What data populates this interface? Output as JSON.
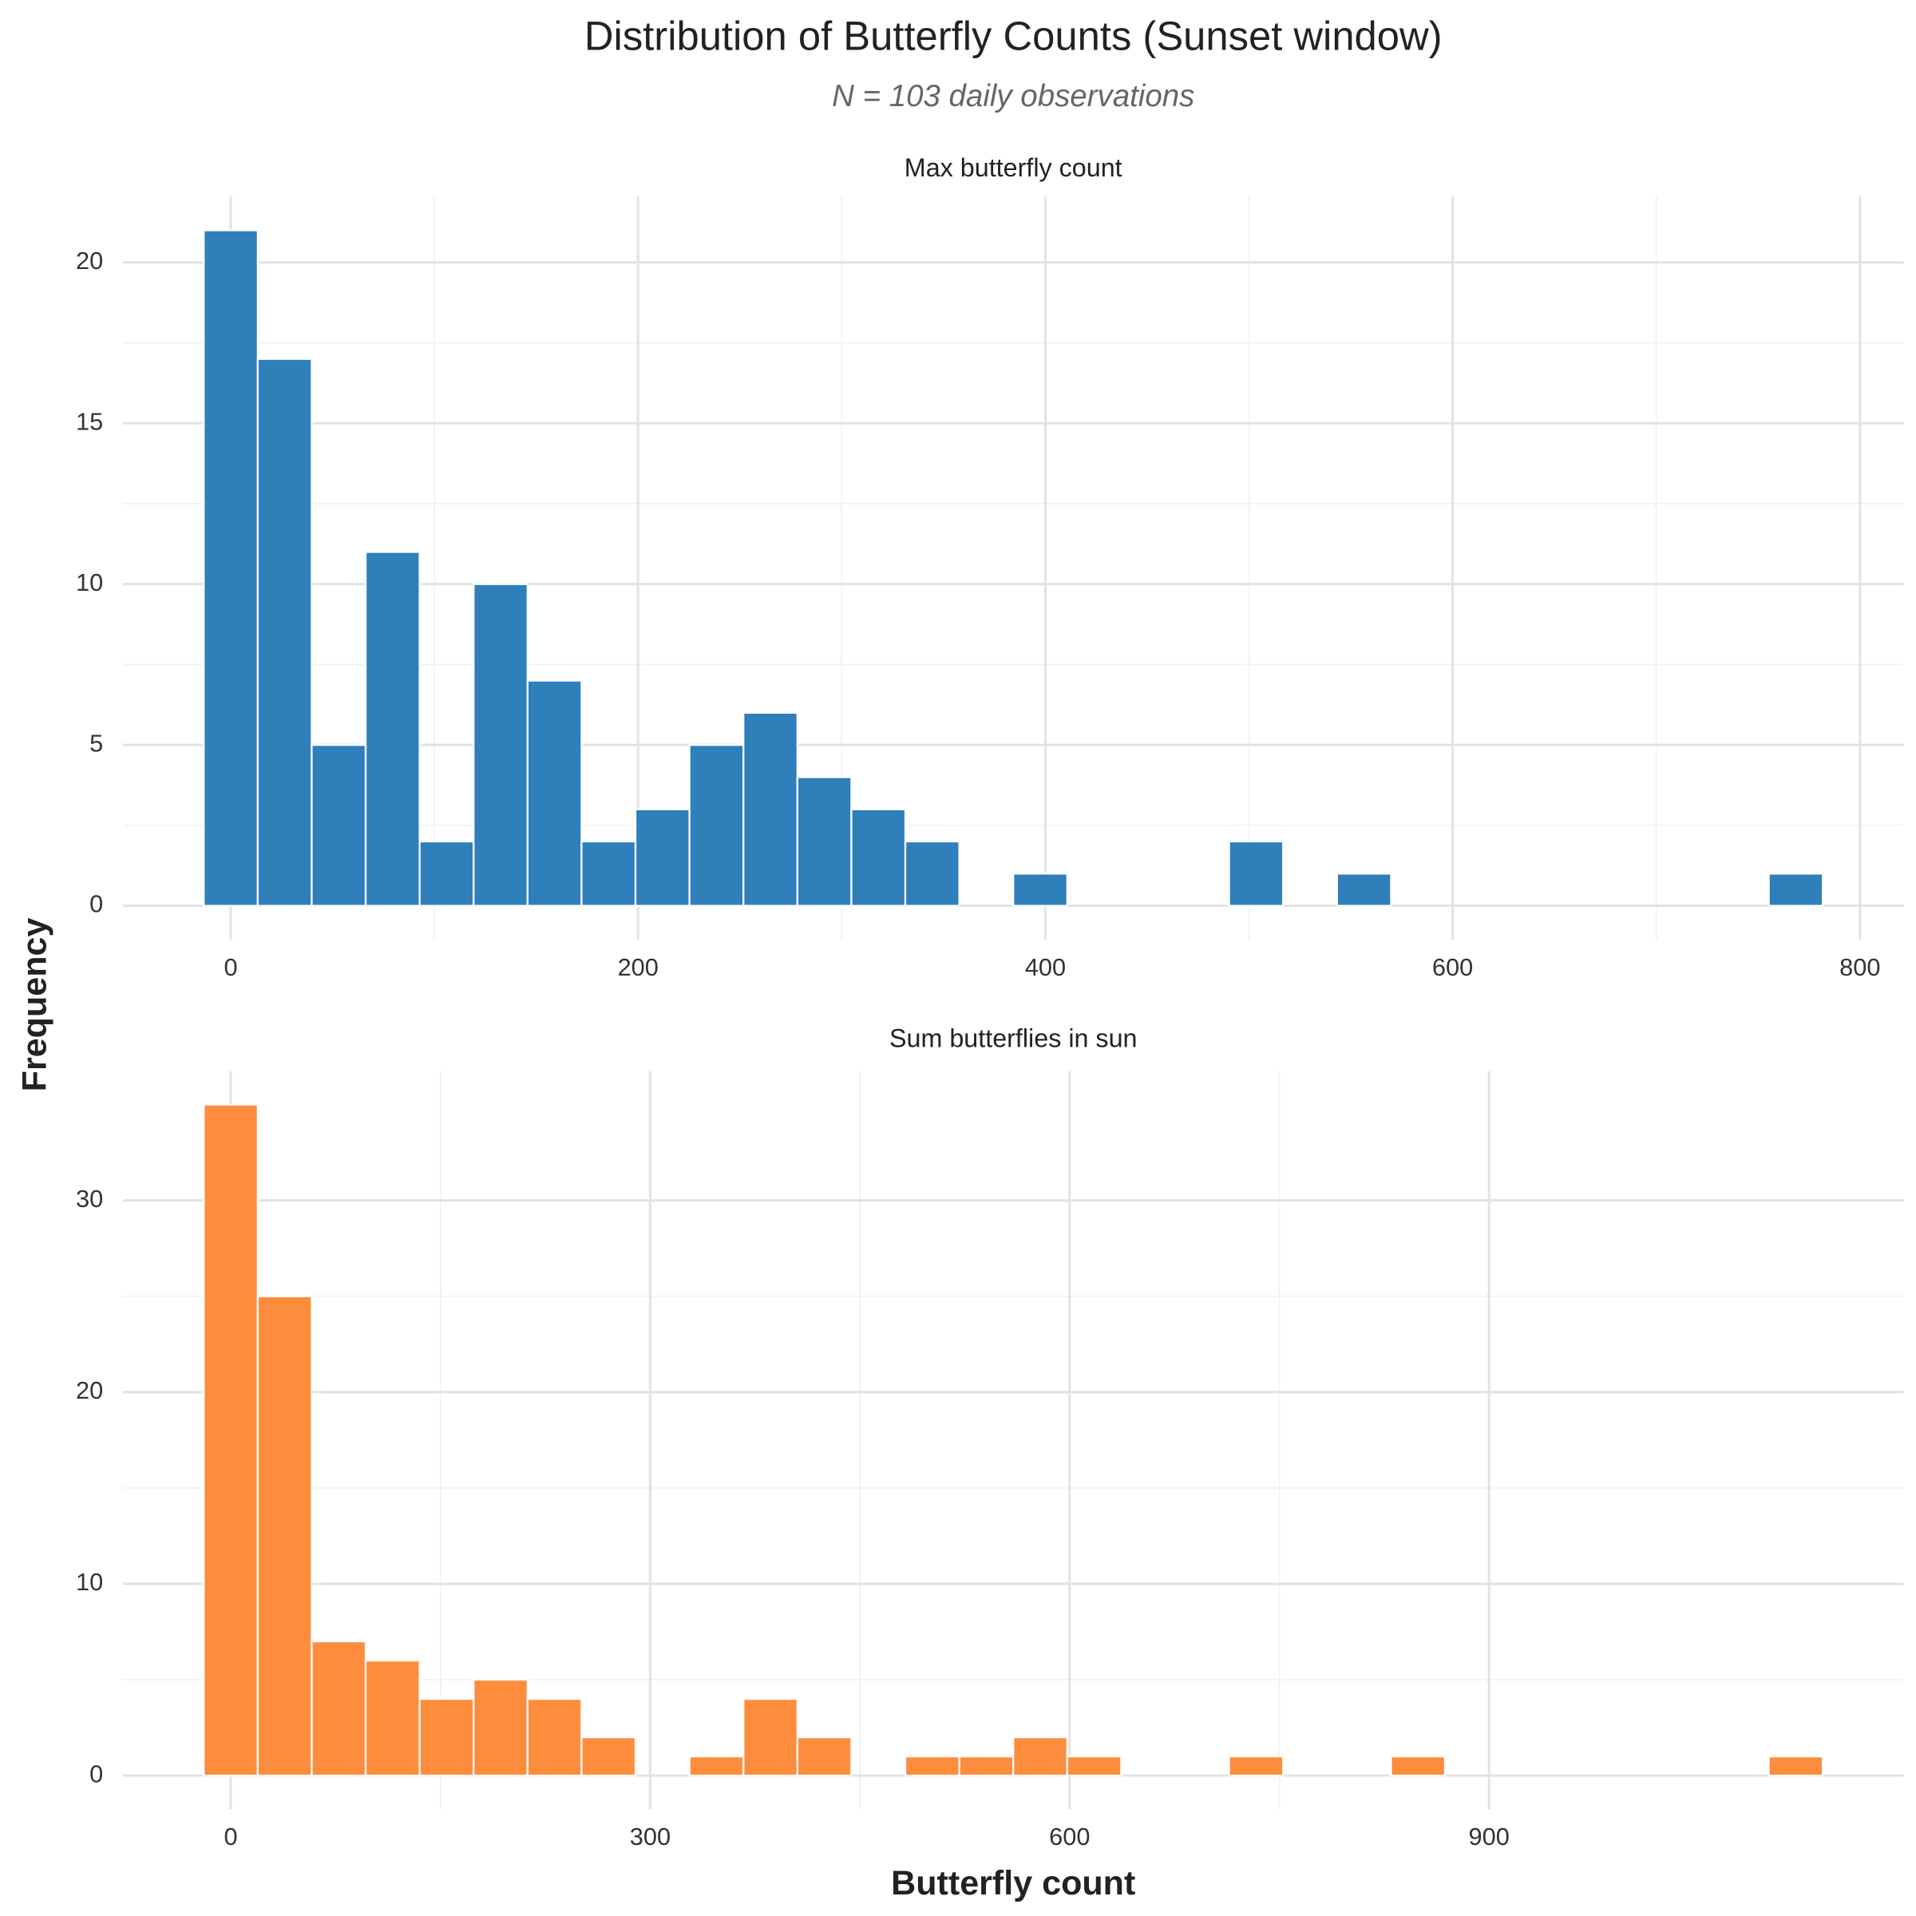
{
  "title": "Distribution of Butterfly Counts (Sunset window)",
  "subtitle": "N = 103 daily observations",
  "x_label": "Butterfly count",
  "y_label": "Frequency",
  "chart_data": [
    {
      "type": "histogram",
      "title": "Max butterfly count",
      "color": "#2e7fba",
      "bins": [
        -13.25,
        13.25,
        39.75,
        66.25,
        92.75,
        119.25,
        145.75,
        172.25,
        198.75,
        225.25,
        251.75,
        278.25,
        304.75,
        331.25,
        357.75,
        384.25,
        410.75,
        437.25,
        463.75,
        490.25,
        516.75,
        543.25,
        569.75,
        596.25,
        622.75,
        649.25,
        675.75,
        702.25,
        728.75,
        755.25,
        781.75
      ],
      "values": [
        21,
        17,
        5,
        11,
        2,
        10,
        7,
        2,
        3,
        5,
        6,
        4,
        3,
        2,
        0,
        1,
        0,
        0,
        0,
        2,
        0,
        1,
        0,
        0,
        0,
        0,
        0,
        0,
        0,
        1
      ],
      "xlim": [
        -53,
        821.5
      ],
      "ylim": [
        -1.05,
        22.05
      ],
      "xticks": [
        0,
        200,
        400,
        600,
        800
      ],
      "yticks": [
        0,
        5,
        10,
        15,
        20
      ],
      "grid": true
    },
    {
      "type": "histogram",
      "title": "Sum butterflies in sun",
      "color": "#fd8d3c",
      "bins": [
        -19.3,
        19.3,
        57.9,
        96.5,
        135.1,
        173.7,
        212.3,
        250.9,
        289.5,
        328.1,
        366.7,
        405.3,
        443.9,
        482.5,
        521.1,
        559.7,
        598.3,
        636.9,
        675.5,
        714.1,
        752.7,
        791.3,
        829.9,
        868.5,
        907.1,
        945.7,
        984.3,
        1022.9,
        1061.5,
        1100.1,
        1138.7
      ],
      "values": [
        35,
        25,
        7,
        6,
        4,
        5,
        4,
        2,
        0,
        1,
        4,
        2,
        0,
        1,
        1,
        2,
        1,
        0,
        0,
        1,
        0,
        0,
        1,
        0,
        0,
        0,
        0,
        0,
        0,
        1
      ],
      "xlim": [
        -77.2,
        1196.6
      ],
      "ylim": [
        -1.75,
        36.75
      ],
      "xticks": [
        0,
        300,
        600,
        900
      ],
      "yticks": [
        0,
        10,
        20,
        30
      ],
      "grid": true
    }
  ]
}
